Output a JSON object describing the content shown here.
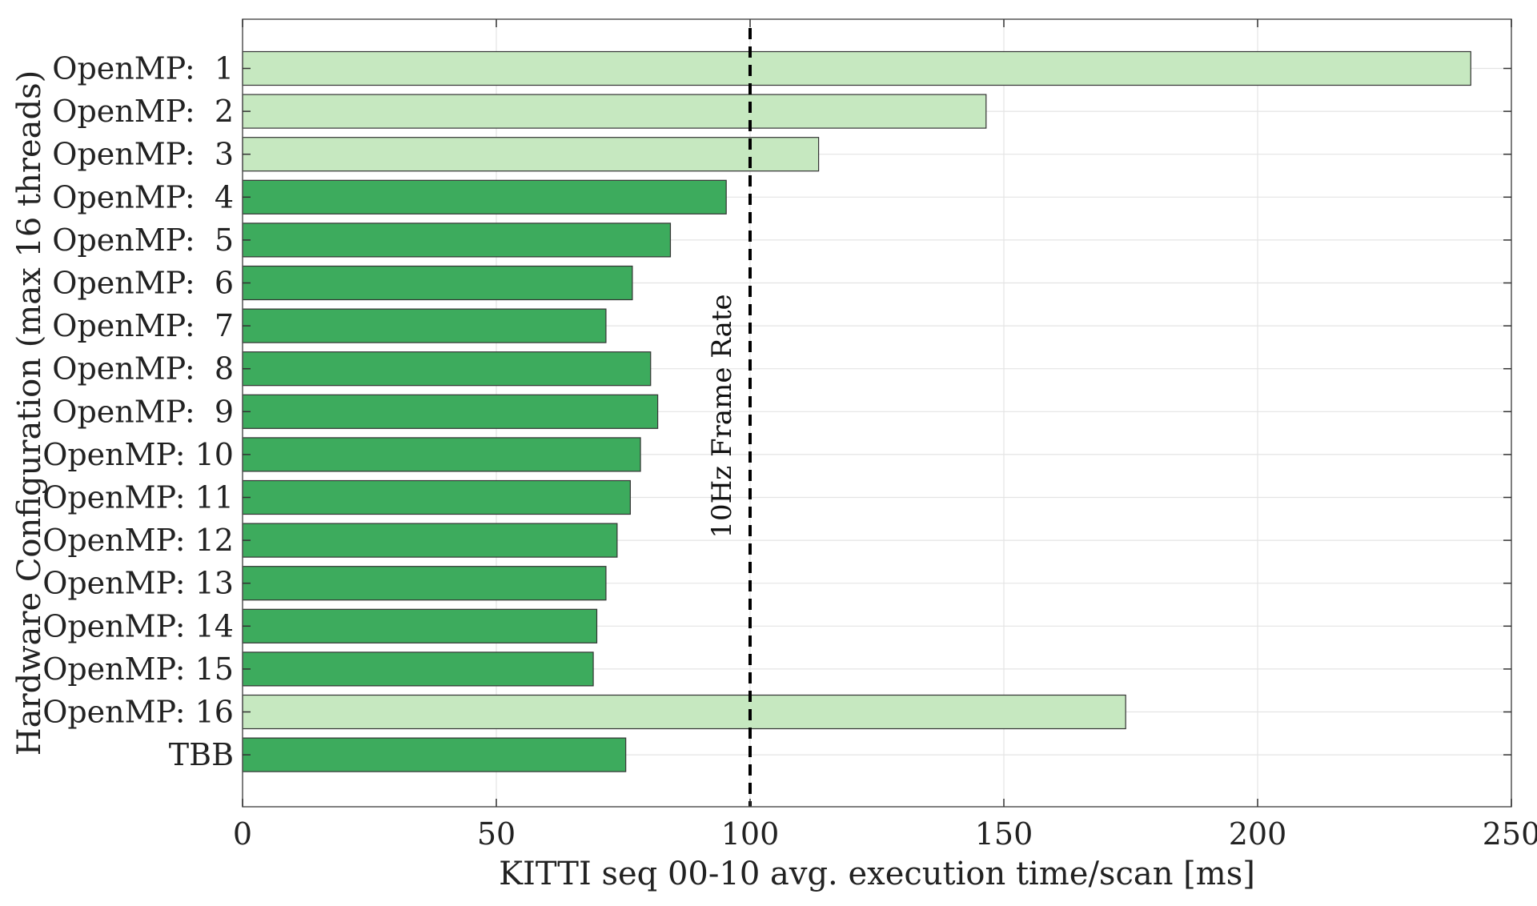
{
  "chart_data": {
    "type": "bar",
    "orientation": "horizontal",
    "xlabel": "KITTI seq 00-10 avg. execution time/scan [ms]",
    "ylabel": "Hardware Configuration (max 16 threads)",
    "xlim": [
      0,
      250
    ],
    "xticks": [
      0,
      50,
      100,
      150,
      200,
      250
    ],
    "grid": true,
    "categories": [
      "OpenMP:  1",
      "OpenMP:  2",
      "OpenMP:  3",
      "OpenMP:  4",
      "OpenMP:  5",
      "OpenMP:  6",
      "OpenMP:  7",
      "OpenMP:  8",
      "OpenMP:  9",
      "OpenMP: 10",
      "OpenMP: 11",
      "OpenMP: 12",
      "OpenMP: 13",
      "OpenMP: 14",
      "OpenMP: 15",
      "OpenMP: 16",
      "TBB"
    ],
    "values": [
      242,
      146.5,
      113.5,
      95.3,
      84.3,
      76.8,
      71.6,
      80.4,
      81.8,
      78.4,
      76.4,
      73.8,
      71.6,
      69.8,
      69.1,
      174,
      75.5
    ],
    "bar_colors": [
      "#c6e8c0",
      "#c6e8c0",
      "#c6e8c0",
      "#3dab5d",
      "#3dab5d",
      "#3dab5d",
      "#3dab5d",
      "#3dab5d",
      "#3dab5d",
      "#3dab5d",
      "#3dab5d",
      "#3dab5d",
      "#3dab5d",
      "#3dab5d",
      "#3dab5d",
      "#c6e8c0",
      "#3dab5d"
    ],
    "reference_line": {
      "x": 100,
      "style": "dashed",
      "color": "#000000",
      "label": "10Hz Frame Rate"
    }
  }
}
